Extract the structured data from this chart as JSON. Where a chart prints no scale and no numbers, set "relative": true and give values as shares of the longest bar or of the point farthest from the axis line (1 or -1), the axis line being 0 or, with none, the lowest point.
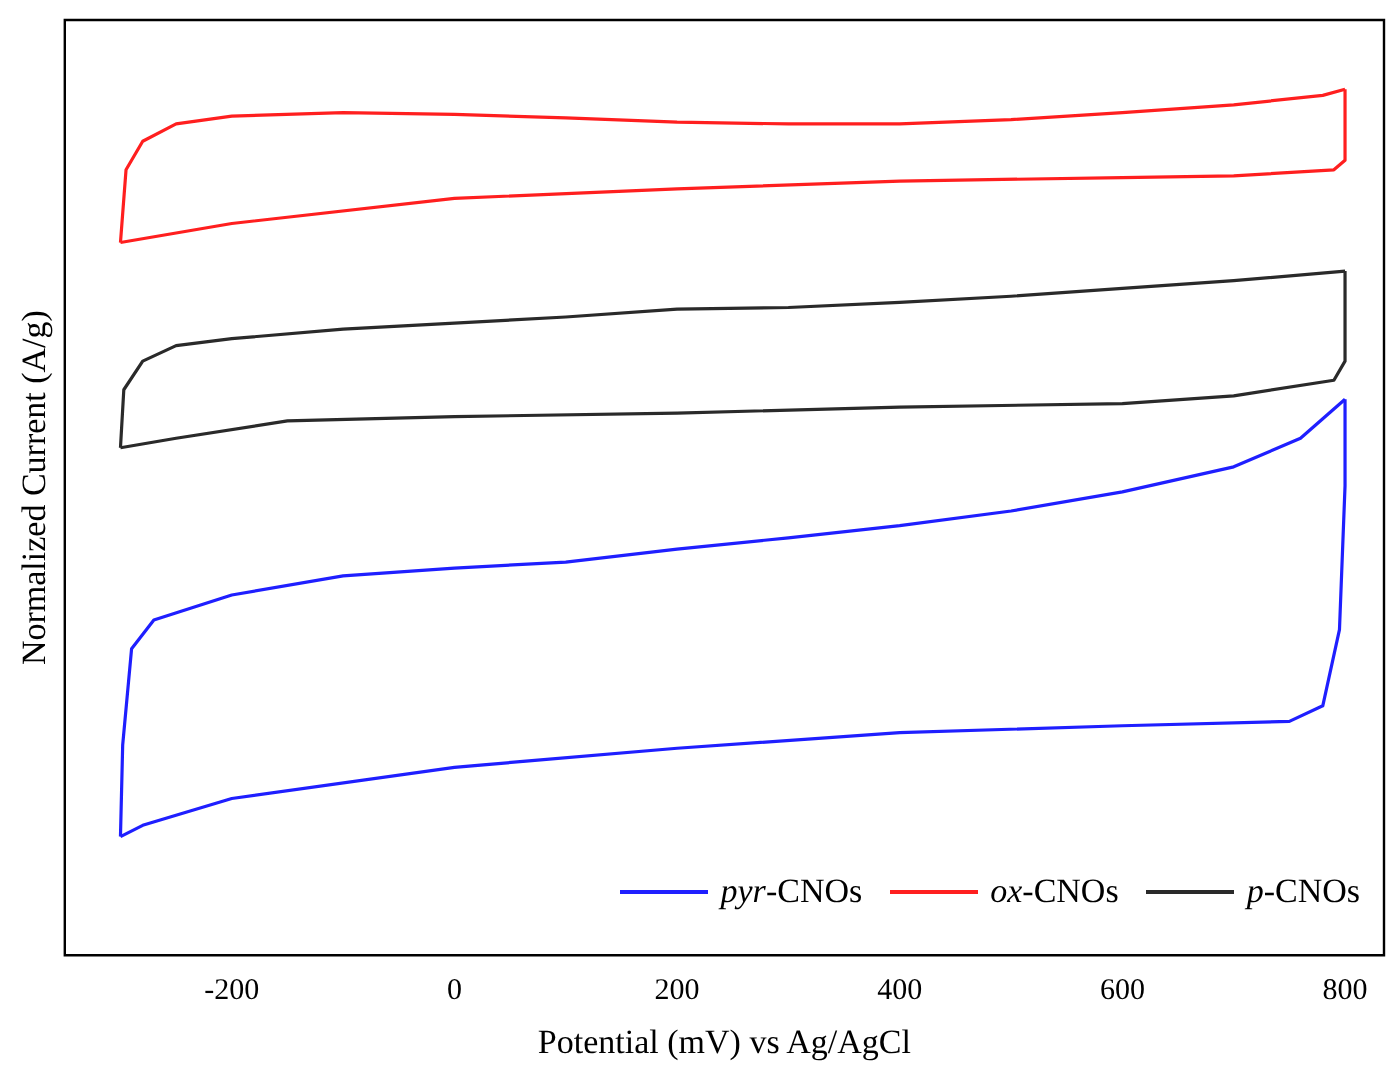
{
  "chart_data": {
    "type": "line",
    "xlabel": "Potential (mV) vs Ag/AgCl",
    "ylabel": "Normalized Current (A/g)",
    "relative": true,
    "xlim": [
      -350,
      835
    ],
    "xticks": [
      -200,
      0,
      200,
      400,
      600,
      800
    ],
    "tick_labels": "x",
    "grid": false,
    "legend": "bottom right",
    "marker": "none",
    "line_style": "solid",
    "series": [
      {
        "name": "pyr-CNOs",
        "color": "#1f1fff",
        "x": [
          -300,
          -298,
          -290,
          -270,
          -200,
          -100,
          0,
          100,
          200,
          300,
          400,
          500,
          600,
          700,
          760,
          800
        ],
        "values": [
          0.137,
          0.243,
          0.354,
          0.387,
          0.416,
          0.438,
          0.447,
          0.454,
          0.469,
          0.482,
          0.496,
          0.513,
          0.535,
          0.564,
          0.597,
          0.642
        ]
      },
      {
        "color": "#1f1fff",
        "x": [
          -300,
          -280,
          -200,
          0,
          200,
          400,
          600,
          750,
          780,
          795,
          800,
          800
        ],
        "values": [
          0.137,
          0.15,
          0.181,
          0.217,
          0.239,
          0.257,
          0.265,
          0.27,
          0.288,
          0.376,
          0.542,
          0.642
        ]
      },
      {
        "name": "ox-CNOs",
        "color": "#ff1f1f",
        "x": [
          -300,
          -295,
          -280,
          -250,
          -200,
          -100,
          0,
          100,
          200,
          300,
          400,
          500,
          600,
          700,
          780,
          800
        ],
        "values": [
          0.823,
          0.907,
          0.94,
          0.96,
          0.969,
          0.973,
          0.971,
          0.967,
          0.962,
          0.96,
          0.96,
          0.965,
          0.973,
          0.982,
          0.993,
          1.0
        ]
      },
      {
        "color": "#ff1f1f",
        "x": [
          -300,
          -200,
          0,
          200,
          400,
          600,
          700,
          790,
          800,
          800
        ],
        "values": [
          0.823,
          0.845,
          0.874,
          0.885,
          0.894,
          0.898,
          0.9,
          0.907,
          0.918,
          1.0
        ]
      },
      {
        "name": "p-CNOs",
        "color": "#2a2a2a",
        "x": [
          -300,
          -297,
          -280,
          -250,
          -200,
          -100,
          0,
          100,
          200,
          300,
          400,
          500,
          600,
          700,
          800
        ],
        "values": [
          0.586,
          0.653,
          0.686,
          0.704,
          0.712,
          0.723,
          0.73,
          0.737,
          0.746,
          0.748,
          0.754,
          0.761,
          0.77,
          0.779,
          0.79
        ]
      },
      {
        "color": "#2a2a2a",
        "x": [
          -300,
          -250,
          -150,
          0,
          200,
          400,
          600,
          700,
          790,
          800,
          800
        ],
        "values": [
          0.586,
          0.597,
          0.617,
          0.622,
          0.626,
          0.633,
          0.637,
          0.646,
          0.664,
          0.686,
          0.79
        ]
      }
    ]
  }
}
